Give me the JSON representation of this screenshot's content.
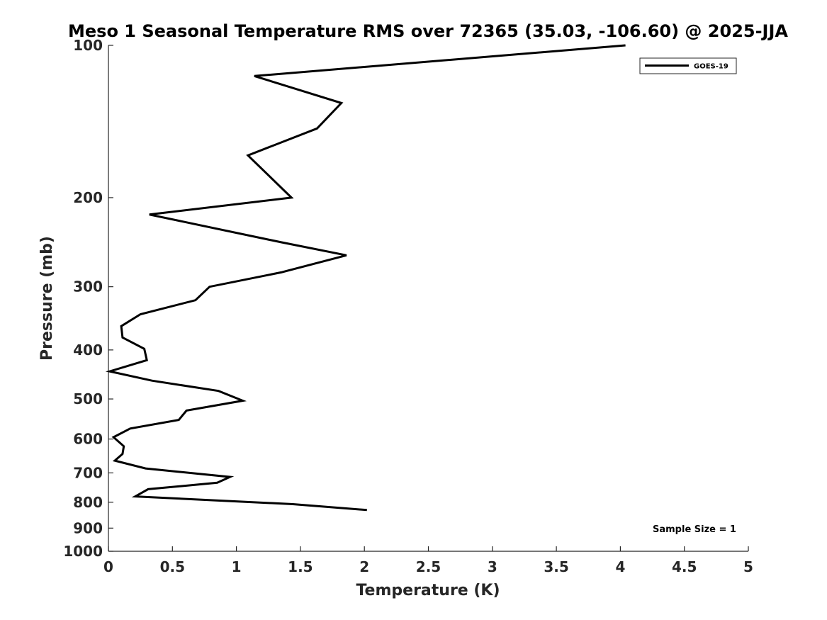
{
  "chart_data": {
    "type": "line",
    "title": "Meso 1 Seasonal Temperature RMS over 72365 (35.03, -106.60) @ 2025-JJA",
    "xlabel": "Temperature (K)",
    "ylabel": "Pressure (mb)",
    "xlim": [
      0,
      5
    ],
    "ylim": [
      1000,
      100
    ],
    "yscale": "log",
    "x_ticks": [
      0,
      0.5,
      1,
      1.5,
      2,
      2.5,
      3,
      3.5,
      4,
      4.5,
      5
    ],
    "x_tick_labels": [
      "0",
      "0.5",
      "1",
      "1.5",
      "2",
      "2.5",
      "3",
      "3.5",
      "4",
      "4.5",
      "5"
    ],
    "y_ticks": [
      100,
      200,
      300,
      400,
      500,
      600,
      700,
      800,
      900,
      1000
    ],
    "y_tick_labels": [
      "100",
      "200",
      "300",
      "400",
      "500",
      "600",
      "700",
      "800",
      "900",
      "1000"
    ],
    "grid": false,
    "legend_position": "top-right",
    "annotation": "Sample Size = 1",
    "series": [
      {
        "name": "GOES-19",
        "color": "#000000",
        "x": [
          4.04,
          1.14,
          1.82,
          1.63,
          1.09,
          1.43,
          0.32,
          1.35,
          1.86,
          1.35,
          0.79,
          0.68,
          0.25,
          0.1,
          0.11,
          0.28,
          0.3,
          0.01,
          0.34,
          0.86,
          1.05,
          0.61,
          0.55,
          0.17,
          0.04,
          0.12,
          0.11,
          0.05,
          0.29,
          0.95,
          0.85,
          0.31,
          0.21,
          1.44,
          2.02
        ],
        "y": [
          100,
          115,
          130,
          146,
          165,
          200,
          216,
          245,
          260,
          281,
          300,
          319,
          340,
          359,
          378,
          398,
          419,
          441,
          460,
          482,
          504,
          527,
          550,
          572,
          595,
          620,
          642,
          662,
          686,
          713,
          732,
          754,
          779,
          807,
          829
        ]
      }
    ]
  }
}
